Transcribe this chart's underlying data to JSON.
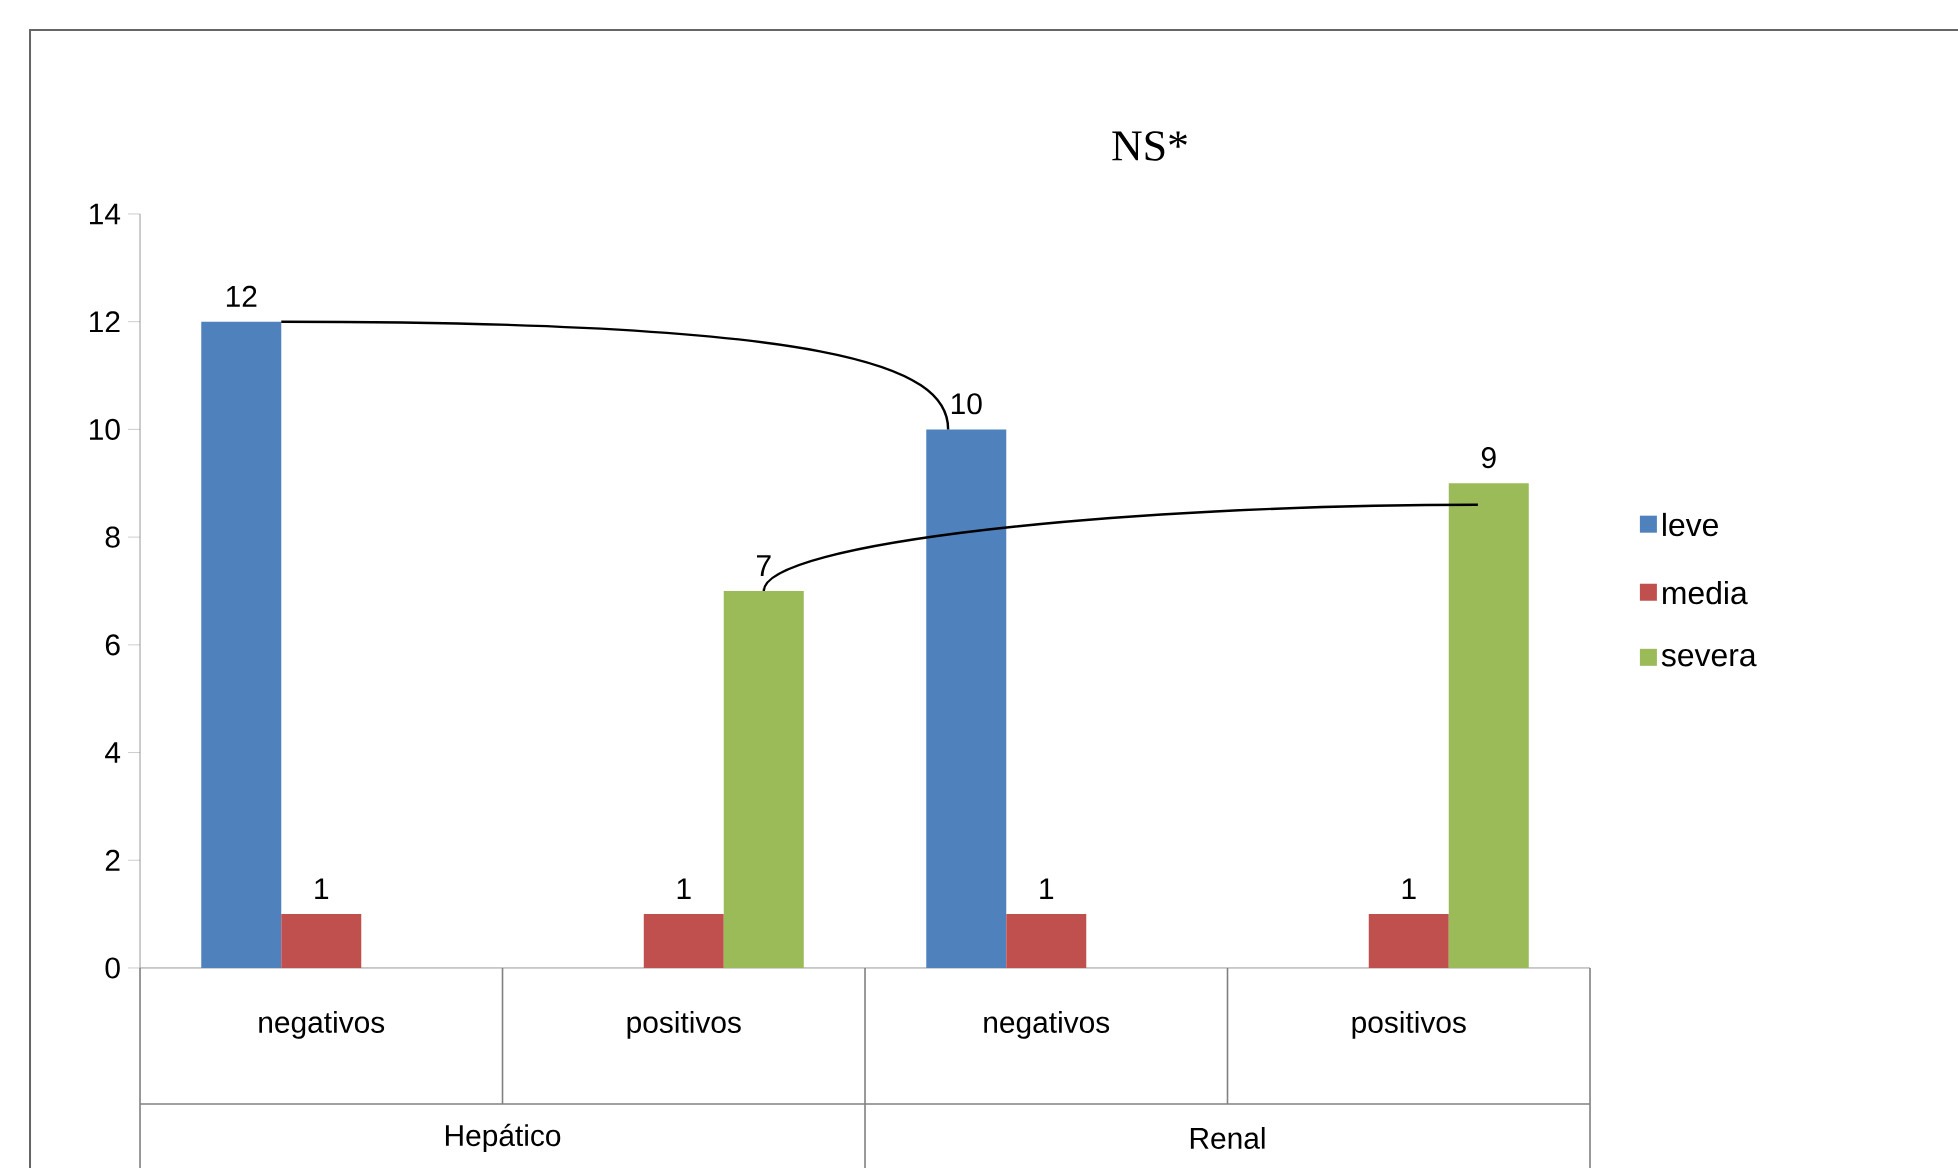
{
  "chart_data": {
    "type": "bar",
    "title": "NS*",
    "categories": [
      "negativos",
      "positivos",
      "negativos",
      "positivos"
    ],
    "series": [
      {
        "name": "leve",
        "color": "#4f81bd",
        "values": [
          12,
          null,
          10,
          null
        ]
      },
      {
        "name": "media",
        "color": "#c0504d",
        "values": [
          1,
          1,
          1,
          1
        ]
      },
      {
        "name": "severa",
        "color": "#9bbb59",
        "values": [
          null,
          7,
          null,
          9
        ]
      }
    ],
    "annotations": [
      "Hepático",
      "Renal"
    ],
    "ylim": [
      0,
      14
    ],
    "yticks": [
      0,
      2,
      4,
      6,
      8,
      10,
      12,
      14
    ],
    "data_labels": true,
    "legend": "right",
    "grid": false
  }
}
